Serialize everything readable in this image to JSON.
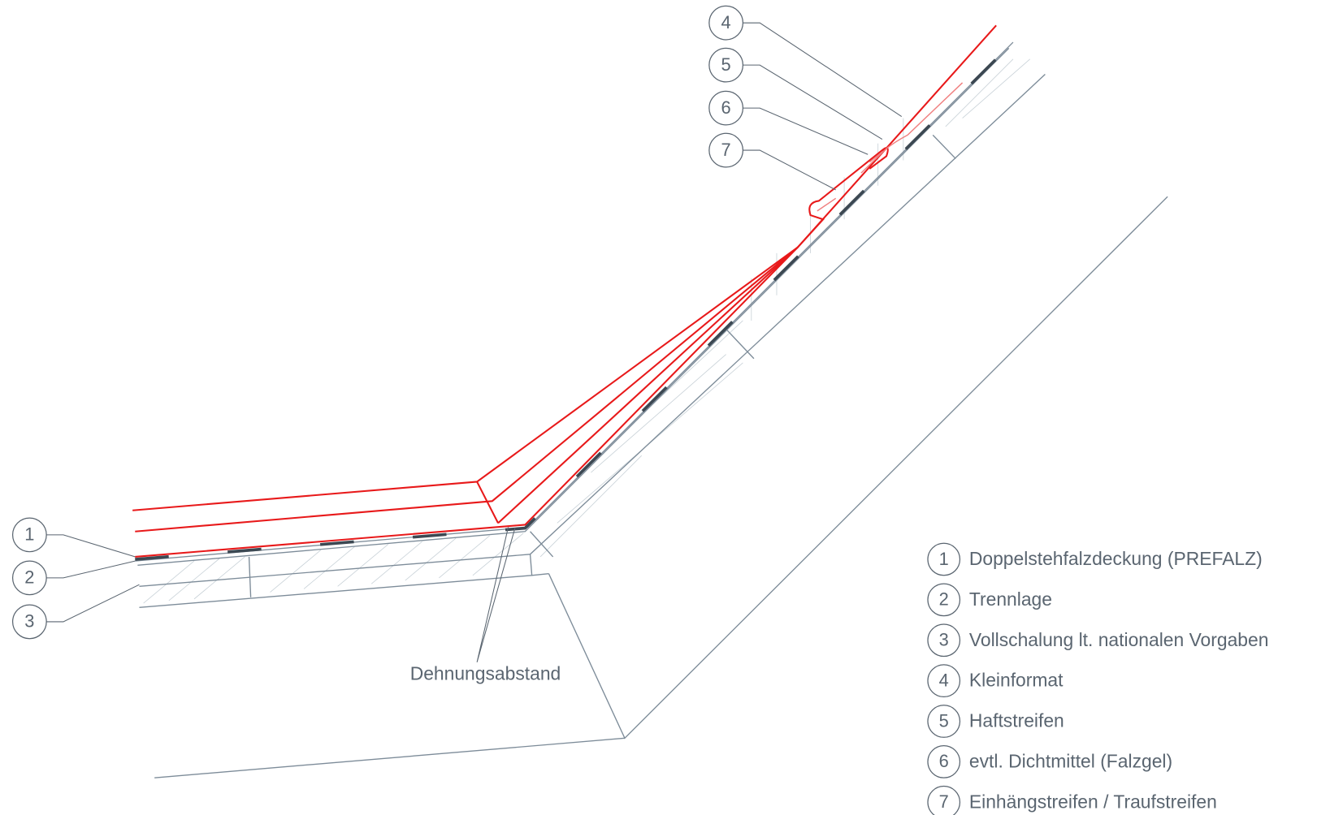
{
  "legend": [
    {
      "number": "1",
      "text": "Doppelstehfalzdeckung (PREFALZ)"
    },
    {
      "number": "2",
      "text": "Trennlage"
    },
    {
      "number": "3",
      "text": "Vollschalung lt. nationalen Vorgaben"
    },
    {
      "number": "4",
      "text": "Kleinformat"
    },
    {
      "number": "5",
      "text": "Haftstreifen"
    },
    {
      "number": "6",
      "text": "evtl. Dichtmittel (Falzgel)"
    },
    {
      "number": "7",
      "text": "Einhängstreifen / Traufstreifen"
    }
  ],
  "annotation": "Dehnungsabstand"
}
